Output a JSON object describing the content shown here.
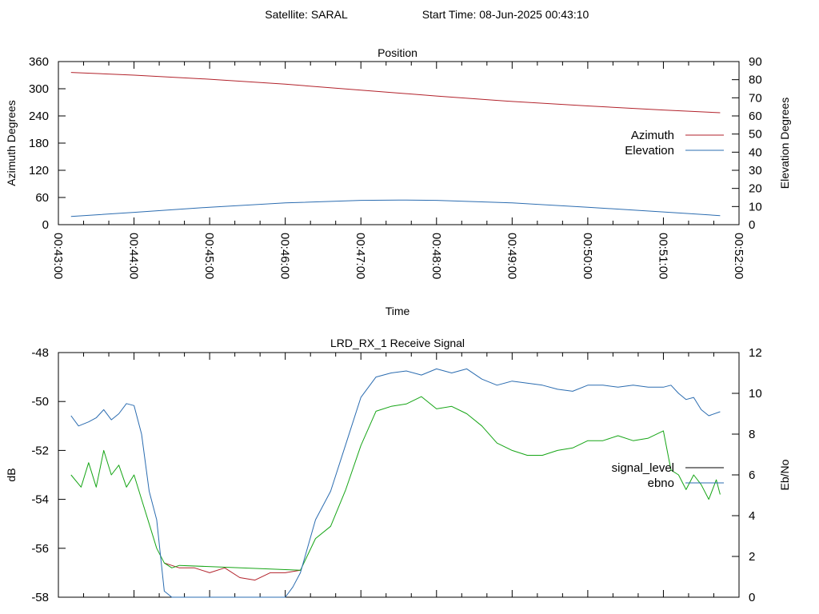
{
  "header": {
    "satellite": "Satellite: SARAL",
    "start_time": "Start Time: 08-Jun-2025 00:43:10"
  },
  "chart_data": [
    {
      "type": "line",
      "title": "Position",
      "xlabel": "Time",
      "ylabel": "Azimuth Degrees",
      "y2label": "Elevation Degrees",
      "xlim": [
        "00:43:00",
        "00:52:00"
      ],
      "x_ticks": [
        "00:43:00",
        "00:44:00",
        "00:45:00",
        "00:46:00",
        "00:47:00",
        "00:48:00",
        "00:49:00",
        "00:50:00",
        "00:51:00",
        "00:52:00"
      ],
      "ylim": [
        0,
        360
      ],
      "y_ticks": [
        0,
        60,
        120,
        180,
        240,
        300,
        360
      ],
      "y2lim": [
        0,
        90
      ],
      "y2_ticks": [
        0,
        10,
        20,
        30,
        40,
        50,
        60,
        70,
        80,
        90
      ],
      "legend": "right",
      "grid": false,
      "series": [
        {
          "name": "Azimuth",
          "axis": "y",
          "color": "#b2222b",
          "x": [
            "00:43:10",
            "00:44:00",
            "00:45:00",
            "00:46:00",
            "00:47:00",
            "00:48:00",
            "00:49:00",
            "00:50:00",
            "00:51:00",
            "00:51:45"
          ],
          "values": [
            336,
            330,
            321,
            310,
            297,
            284,
            272,
            262,
            253,
            247
          ]
        },
        {
          "name": "Elevation",
          "axis": "y2",
          "color": "#2b6cb0",
          "x": [
            "00:43:10",
            "00:44:00",
            "00:45:00",
            "00:46:00",
            "00:47:00",
            "00:47:30",
            "00:48:00",
            "00:49:00",
            "00:50:00",
            "00:51:00",
            "00:51:45"
          ],
          "values": [
            4.5,
            6.8,
            9.6,
            12.0,
            13.4,
            13.6,
            13.4,
            12.0,
            9.6,
            7.0,
            5.0
          ]
        }
      ]
    },
    {
      "type": "line",
      "title": "LRD_RX_1 Receive Signal",
      "ylabel": "dB",
      "y2label": "Eb/No",
      "xlim": [
        "00:43:00",
        "00:52:00"
      ],
      "ylim": [
        -58,
        -48
      ],
      "y_ticks": [
        -58,
        -56,
        -54,
        -52,
        -50,
        -48
      ],
      "y2lim": [
        0,
        12
      ],
      "y2_ticks": [
        0,
        2,
        4,
        6,
        8,
        10,
        12
      ],
      "legend": "right",
      "grid": false,
      "series": [
        {
          "name": "signal_level",
          "axis": "y",
          "color": "#b2222b",
          "x": [
            "00:44:24",
            "00:44:36",
            "00:44:48",
            "00:45:00",
            "00:45:12",
            "00:45:24",
            "00:45:36",
            "00:45:48",
            "00:46:00",
            "00:46:12"
          ],
          "values": [
            -56.6,
            -56.8,
            -56.8,
            -57.0,
            -56.8,
            -57.2,
            -57.3,
            -57.0,
            -57.0,
            -56.9
          ]
        },
        {
          "name": "signal_level",
          "axis": "y",
          "color": "#16a516",
          "x": [
            "00:43:10",
            "00:43:18",
            "00:43:24",
            "00:43:30",
            "00:43:36",
            "00:43:42",
            "00:43:48",
            "00:43:54",
            "00:44:00",
            "00:44:06",
            "00:44:12",
            "00:44:18",
            "00:44:24",
            "00:44:30",
            "00:44:36",
            "00:46:12",
            "00:46:24",
            "00:46:36",
            "00:46:48",
            "00:47:00",
            "00:47:12",
            "00:47:24",
            "00:47:36",
            "00:47:48",
            "00:48:00",
            "00:48:12",
            "00:48:24",
            "00:48:36",
            "00:48:48",
            "00:49:00",
            "00:49:12",
            "00:49:24",
            "00:49:36",
            "00:49:48",
            "00:50:00",
            "00:50:12",
            "00:50:24",
            "00:50:36",
            "00:50:48",
            "00:51:00",
            "00:51:06",
            "00:51:12",
            "00:51:18",
            "00:51:24",
            "00:51:30",
            "00:51:36",
            "00:51:42",
            "00:51:45"
          ],
          "values": [
            -53.0,
            -53.5,
            -52.5,
            -53.5,
            -52.0,
            -53.0,
            -52.6,
            -53.5,
            -53.0,
            -54.0,
            -55.0,
            -56.0,
            -56.6,
            -56.8,
            -56.7,
            -56.9,
            -55.6,
            -55.1,
            -53.6,
            -51.8,
            -50.4,
            -50.2,
            -50.1,
            -49.8,
            -50.3,
            -50.2,
            -50.5,
            -51.0,
            -51.7,
            -52.0,
            -52.2,
            -52.2,
            -52.0,
            -51.9,
            -51.6,
            -51.6,
            -51.4,
            -51.6,
            -51.5,
            -51.2,
            -52.8,
            -53.0,
            -53.6,
            -53.0,
            -53.4,
            -54.0,
            -53.2,
            -53.8
          ]
        },
        {
          "name": "ebno",
          "axis": "y2",
          "color": "#2b6cb0",
          "x": [
            "00:43:10",
            "00:43:16",
            "00:43:24",
            "00:43:30",
            "00:43:36",
            "00:43:42",
            "00:43:48",
            "00:43:54",
            "00:44:00",
            "00:44:06",
            "00:44:12",
            "00:44:18",
            "00:44:24",
            "00:44:30",
            "00:44:36",
            "00:45:00",
            "00:45:30",
            "00:46:00",
            "00:46:06",
            "00:46:12",
            "00:46:24",
            "00:46:36",
            "00:46:48",
            "00:47:00",
            "00:47:12",
            "00:47:24",
            "00:47:36",
            "00:47:48",
            "00:48:00",
            "00:48:12",
            "00:48:24",
            "00:48:36",
            "00:48:48",
            "00:49:00",
            "00:49:12",
            "00:49:24",
            "00:49:36",
            "00:49:48",
            "00:50:00",
            "00:50:12",
            "00:50:24",
            "00:50:36",
            "00:50:48",
            "00:51:00",
            "00:51:06",
            "00:51:12",
            "00:51:18",
            "00:51:24",
            "00:51:30",
            "00:51:36",
            "00:51:45"
          ],
          "values": [
            8.9,
            8.4,
            8.6,
            8.8,
            9.2,
            8.7,
            9.0,
            9.5,
            9.4,
            8.0,
            5.2,
            3.8,
            0.3,
            -0.5,
            -0.2,
            -0.4,
            -0.2,
            -0.3,
            0.5,
            1.2,
            3.8,
            5.2,
            7.5,
            9.8,
            10.8,
            11.0,
            11.1,
            10.9,
            11.2,
            11.0,
            11.2,
            10.7,
            10.4,
            10.6,
            10.5,
            10.4,
            10.2,
            10.1,
            10.4,
            10.4,
            10.3,
            10.4,
            10.3,
            10.3,
            10.4,
            10.0,
            9.7,
            9.8,
            9.2,
            8.9,
            9.1
          ]
        }
      ]
    }
  ]
}
